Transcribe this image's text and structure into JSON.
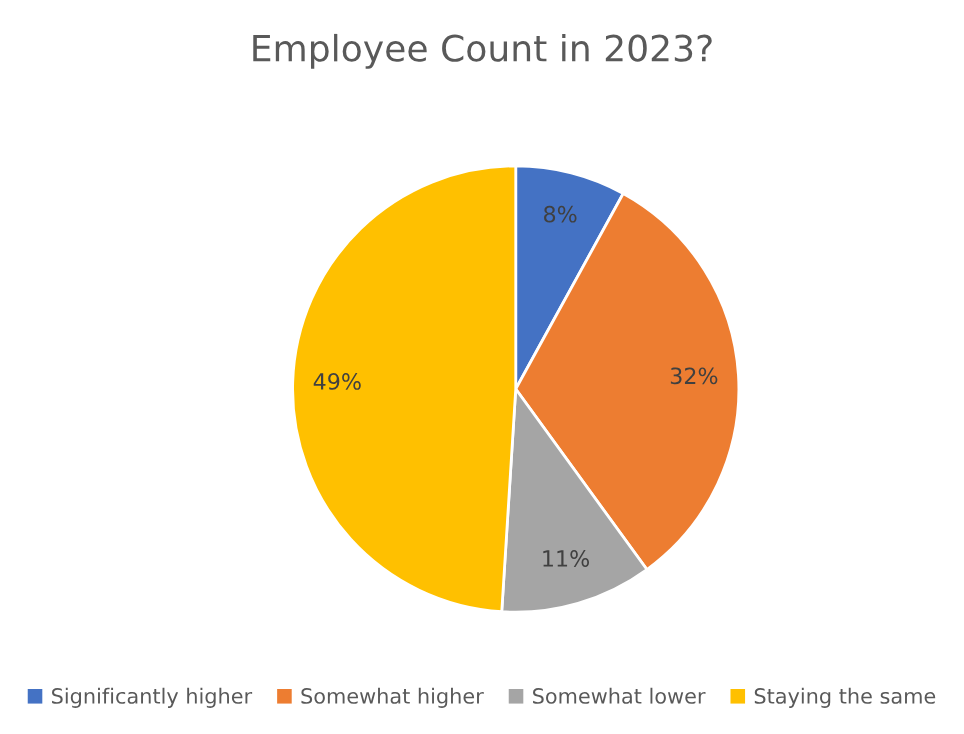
{
  "chart_data": {
    "type": "pie",
    "title": "Employee Count in 2023?",
    "categories": [
      "Significantly higher",
      "Somewhat higher",
      "Somewhat lower",
      "Staying the same"
    ],
    "values": [
      8,
      32,
      11,
      49
    ],
    "colors": [
      "#4472c4",
      "#ed7d31",
      "#a5a5a5",
      "#ffc000"
    ],
    "value_labels": [
      "8%",
      "32%",
      "11%",
      "49%"
    ],
    "legend": "bottom"
  }
}
